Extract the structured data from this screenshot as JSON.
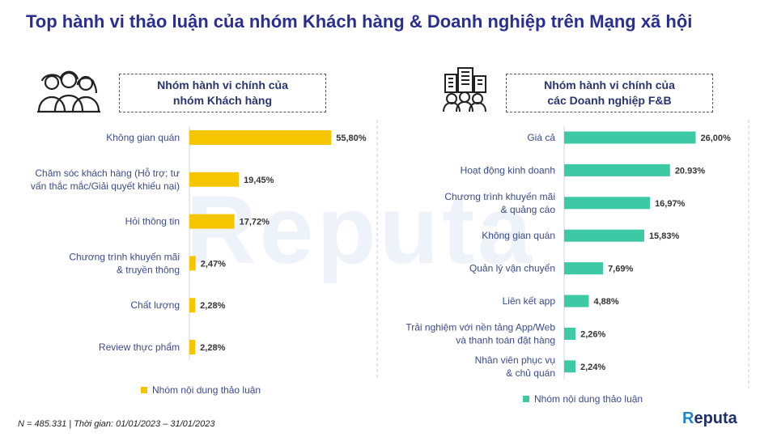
{
  "title": "Top hành vi thảo luận của nhóm Khách hàng & Doanh nghiệp trên Mạng xã hội",
  "watermark": "Reputa",
  "left": {
    "header_line1": "Nhóm hành vi chính của",
    "header_line2": "nhóm Khách hàng",
    "legend": "Nhóm nội dung thảo luận",
    "icon": "people-group-icon"
  },
  "right": {
    "header_line1": "Nhóm hành vi chính của",
    "header_line2": "các Doanh nghiệp F&B",
    "legend": "Nhóm nội dung thảo luận",
    "icon": "city-people-icon"
  },
  "chart_data": [
    {
      "type": "bar",
      "orientation": "horizontal",
      "title": "Nhóm hành vi chính của nhóm Khách hàng",
      "color": "#f5c600",
      "categories": [
        [
          "Không gian quán"
        ],
        [
          "Chăm sóc khách hàng (Hỗ trợ; tư",
          "vấn thắc mắc/Giải quyết khiếu nại)"
        ],
        [
          "Hỏi thông tin"
        ],
        [
          "Chương trình khuyến mãi",
          "& truyền thông"
        ],
        [
          "Chất lượng"
        ],
        [
          "Review thực phẩm"
        ]
      ],
      "values": [
        55.8,
        19.45,
        17.72,
        2.47,
        2.28,
        2.28
      ],
      "labels": [
        "55,80%",
        "19,45%",
        "17,72%",
        "2,47%",
        "2,28%",
        "2,28%"
      ],
      "series_name": "Nhóm nội dung thảo luận"
    },
    {
      "type": "bar",
      "orientation": "horizontal",
      "title": "Nhóm hành vi chính của các Doanh nghiệp F&B",
      "color": "#3ec9a5",
      "categories": [
        [
          "Giá cả"
        ],
        [
          "Hoạt động kinh doanh"
        ],
        [
          "Chương trình khuyến mãi",
          "& quảng cáo"
        ],
        [
          "Không gian quán"
        ],
        [
          "Quản lý vận chuyển"
        ],
        [
          "Liên kết app"
        ],
        [
          "Trải nghiệm với nền tảng App/Web",
          "và thanh toán đặt hàng"
        ],
        [
          "Nhân viên phục vụ",
          "& chủ quán"
        ]
      ],
      "values": [
        26.0,
        20.93,
        16.97,
        15.83,
        7.69,
        4.88,
        2.26,
        2.24
      ],
      "labels": [
        "26,00%",
        "20.93%",
        "16,97%",
        "15,83%",
        "7,69%",
        "4,88%",
        "2,26%",
        "2,24%"
      ],
      "series_name": "Nhóm nội dung thảo luận"
    }
  ],
  "footnote": "N = 485.331 | Thời gian: 01/01/2023 – 31/01/2023",
  "brand_mark": "R",
  "brand_rest": "eputa"
}
